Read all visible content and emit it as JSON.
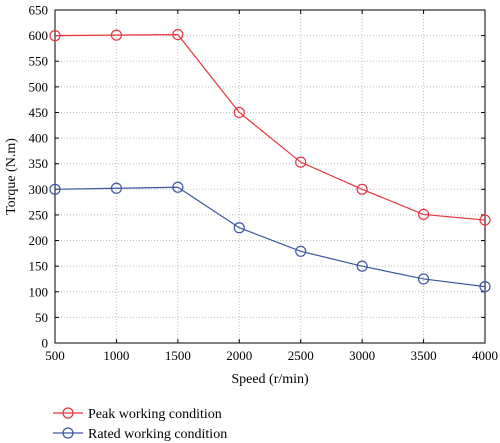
{
  "chart_data": {
    "type": "line",
    "xlabel": "Speed (r/min)",
    "ylabel": "Torque (N.m)",
    "xlim": [
      500,
      4000
    ],
    "ylim": [
      0,
      650
    ],
    "xticks": [
      "500",
      "1000",
      "1500",
      "2000",
      "2500",
      "3000",
      "3500",
      "4000"
    ],
    "yticks": [
      "0",
      "50",
      "100",
      "150",
      "200",
      "250",
      "300",
      "350",
      "400",
      "450",
      "500",
      "550",
      "600",
      "650"
    ],
    "grid": true,
    "legend_position": "bottom-left, below plot",
    "x": [
      500,
      1000,
      1500,
      2000,
      2500,
      3000,
      3500,
      4000
    ],
    "series": [
      {
        "name": "Peak working condition",
        "color": "#e8333c",
        "marker": "circle",
        "values": [
          600,
          601,
          602,
          450,
          353,
          300,
          251,
          240
        ]
      },
      {
        "name": "Rated working condition",
        "color": "#3a56a0",
        "marker": "circle",
        "values": [
          300,
          302,
          304,
          225,
          179,
          150,
          125,
          110
        ]
      }
    ]
  }
}
